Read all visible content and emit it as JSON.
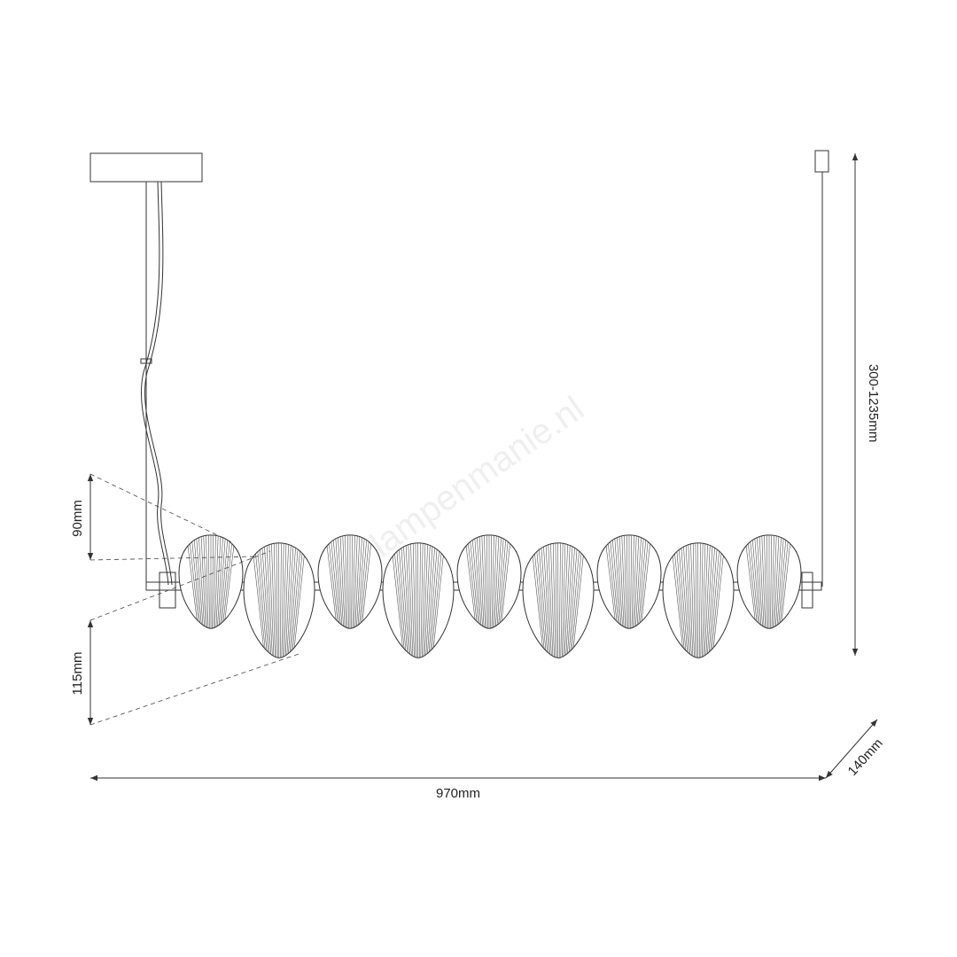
{
  "dimensions": {
    "height": "300-1235mm",
    "small_shell": "90mm",
    "large_shell": "115mm",
    "width": "970mm",
    "depth": "140mm"
  },
  "watermark": "lampenmanie.nl"
}
